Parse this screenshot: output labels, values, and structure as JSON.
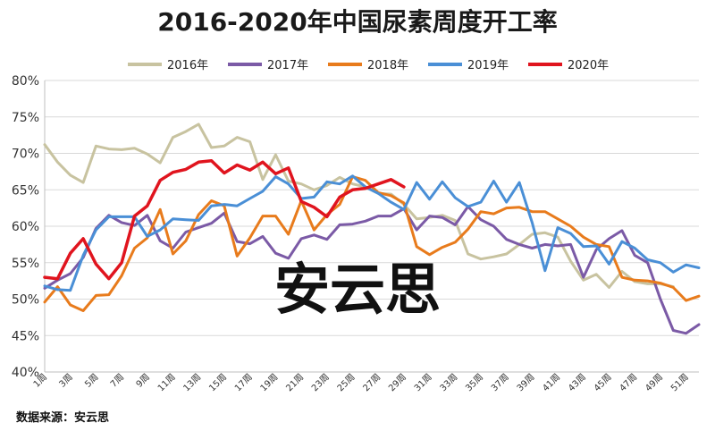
{
  "chart_data": {
    "type": "line",
    "title": "2016-2020年中国尿素周度开工率",
    "source": "数据来源：安云思",
    "watermark": "安云思",
    "xlabel": "",
    "ylabel": "",
    "ylim": [
      40,
      80
    ],
    "y_ticks": [
      "40%",
      "45%",
      "50%",
      "55%",
      "60%",
      "65%",
      "70%",
      "75%",
      "80%"
    ],
    "x_tick_labels": [
      "1周",
      "3周",
      "5周",
      "7周",
      "9周",
      "11周",
      "13周",
      "15周",
      "17周",
      "19周",
      "21周",
      "23周",
      "25周",
      "27周",
      "29周",
      "31周",
      "33周",
      "35周",
      "37周",
      "39周",
      "41周",
      "43周",
      "45周",
      "47周",
      "49周",
      "51周"
    ],
    "x": [
      1,
      2,
      3,
      4,
      5,
      6,
      7,
      8,
      9,
      10,
      11,
      12,
      13,
      14,
      15,
      16,
      17,
      18,
      19,
      20,
      21,
      22,
      23,
      24,
      25,
      26,
      27,
      28,
      29,
      30,
      31,
      32,
      33,
      34,
      35,
      36,
      37,
      38,
      39,
      40,
      41,
      42,
      43,
      44,
      45,
      46,
      47,
      48,
      49,
      50,
      51,
      52
    ],
    "grid": "horizontal",
    "legend_position": "top",
    "series": [
      {
        "name": "2016年",
        "color": "#c8c3a0",
        "values": [
          71.2,
          68.8,
          67,
          66,
          71,
          70.6,
          70.5,
          70.7,
          69.9,
          68.7,
          72.2,
          73,
          74,
          70.8,
          71,
          72.2,
          71.6,
          66.4,
          69.8,
          66.2,
          65.8,
          65,
          65.6,
          66.7,
          65.8,
          65.4,
          64.5,
          64.4,
          63,
          61,
          61.2,
          61.5,
          60.8,
          56.2,
          55.5,
          55.8,
          56.2,
          57.5,
          58.9,
          59.1,
          58.5,
          55.2,
          52.6,
          53.4,
          51.6,
          53.8,
          52.4,
          52.1,
          52.1,
          51.7,
          null,
          null
        ]
      },
      {
        "name": "2017年",
        "color": "#7b5aa6",
        "values": [
          51.5,
          52.6,
          53.5,
          55.7,
          59.7,
          61.5,
          60.5,
          60.1,
          61.5,
          58,
          57,
          59.2,
          59.8,
          60.4,
          61.8,
          57.9,
          57.6,
          58.6,
          56.3,
          55.6,
          58.3,
          58.8,
          58.2,
          60.2,
          60.3,
          60.7,
          61.4,
          61.4,
          62.4,
          59.5,
          61.4,
          61.2,
          60.2,
          62.7,
          60.9,
          60,
          58.2,
          57.5,
          57,
          57.5,
          57.3,
          57.5,
          53,
          56.8,
          58.3,
          59.4,
          56,
          55,
          50,
          45.7,
          45.3,
          46.5
        ]
      },
      {
        "name": "2018年",
        "color": "#e87b1c",
        "values": [
          49.6,
          51.7,
          49.2,
          48.4,
          50.5,
          50.6,
          53.2,
          57,
          58.4,
          62.3,
          56.2,
          58,
          61.6,
          63.5,
          62.8,
          55.9,
          58.4,
          61.4,
          61.4,
          58.9,
          63.5,
          59.5,
          61.6,
          63,
          66.8,
          66.3,
          64.6,
          64.2,
          63.2,
          57.2,
          56.1,
          57.1,
          57.8,
          59.6,
          62,
          61.7,
          62.5,
          62.6,
          62,
          62,
          61,
          60,
          58.5,
          57.5,
          57.2,
          53,
          52.6,
          52.5,
          52.2,
          51.6,
          49.8,
          50.4
        ]
      },
      {
        "name": "2019年",
        "color": "#4a8fd6",
        "values": [
          51.8,
          51.3,
          51.2,
          56,
          59.5,
          61.3,
          61.3,
          61.3,
          58.6,
          59.5,
          61,
          60.9,
          60.8,
          62.8,
          63,
          62.8,
          63.8,
          64.8,
          66.8,
          65.8,
          63.8,
          64,
          66.1,
          65.8,
          66.9,
          65.4,
          64.5,
          63.3,
          62.3,
          66,
          63.7,
          66.1,
          63.9,
          62.7,
          63.3,
          66.2,
          63.3,
          66,
          60.5,
          53.9,
          59.8,
          59,
          57.2,
          57.3,
          54.8,
          57.9,
          57,
          55.4,
          55,
          53.7,
          54.7,
          54.3
        ]
      },
      {
        "name": "2020年",
        "color": "#e0141e",
        "values": [
          53,
          52.8,
          56.3,
          58.3,
          54.8,
          52.8,
          55,
          61.4,
          62.8,
          66.3,
          67.4,
          67.8,
          68.8,
          69,
          67.3,
          68.4,
          67.7,
          68.8,
          67.2,
          68,
          63.4,
          62.6,
          61.3,
          64,
          65,
          65.2,
          65.8,
          66.4,
          65.4,
          null,
          null,
          null,
          null,
          null,
          null,
          null,
          null,
          null,
          null,
          null,
          null,
          null,
          null,
          null,
          null,
          null,
          null,
          null,
          null,
          null,
          null,
          null
        ]
      }
    ]
  }
}
